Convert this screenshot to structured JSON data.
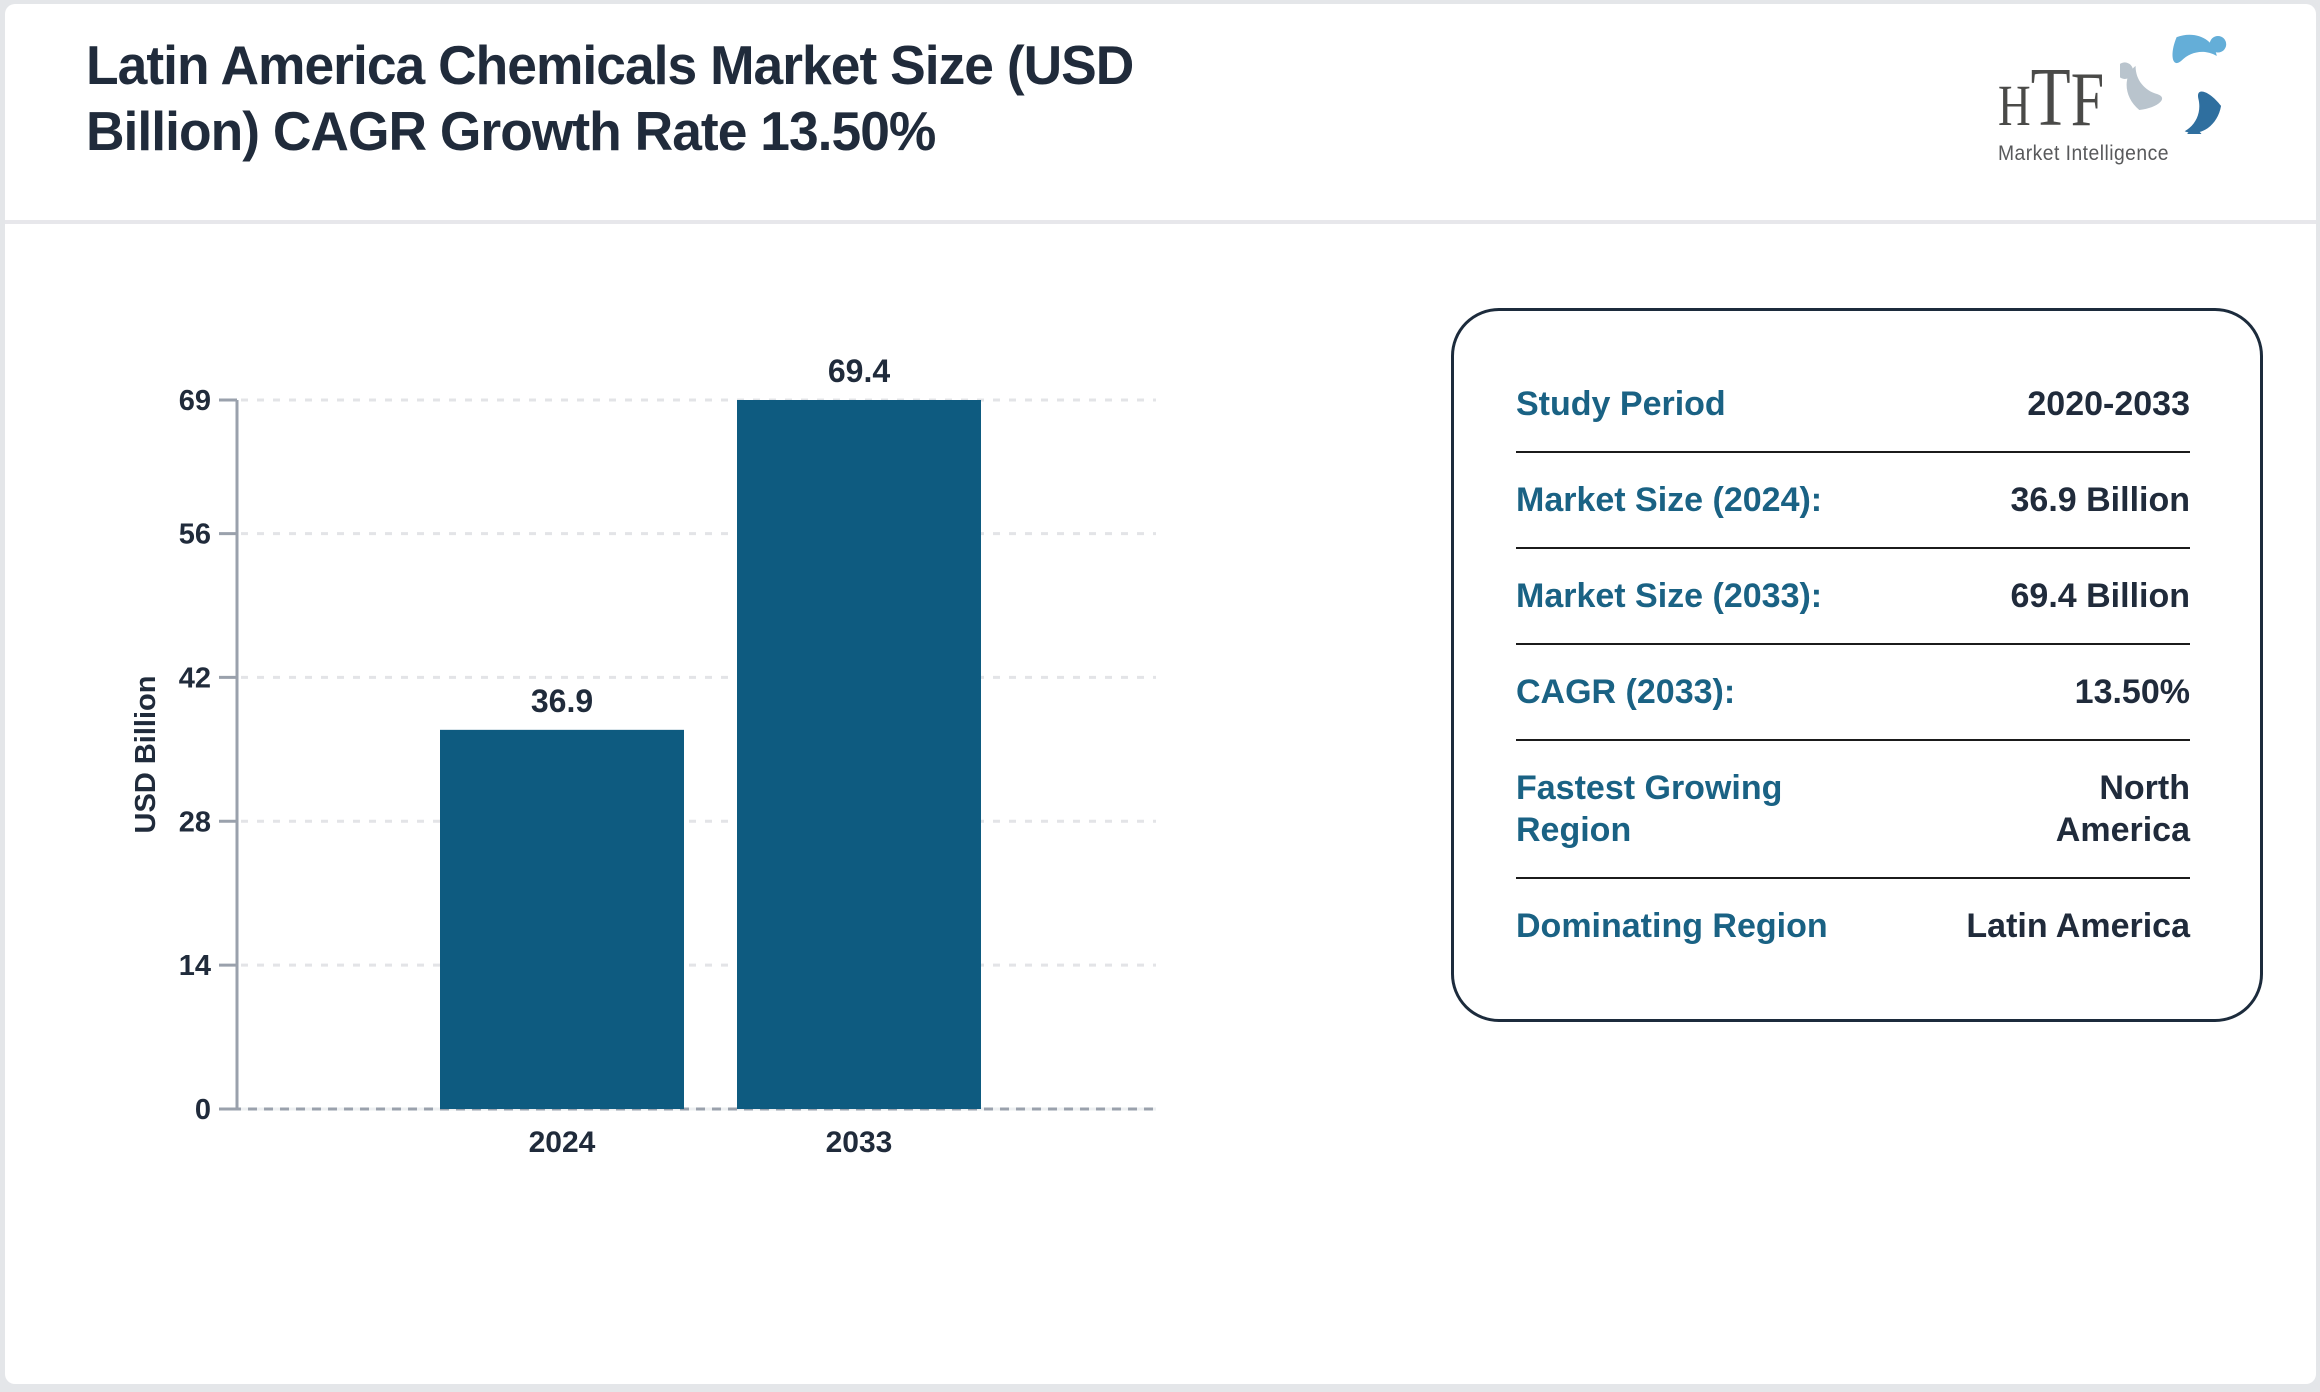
{
  "header": {
    "title_line1": "Latin America Chemicals Market Size (USD",
    "title_line2": "Billion) CAGR Growth Rate 13.50%"
  },
  "logo": {
    "brand": "HTF",
    "tagline": "Market Intelligence",
    "icon": "swirl-figures-icon",
    "colors": {
      "light_blue": "#64aed8",
      "dark_blue": "#2f6f9f",
      "gray_blue": "#b9c4cd",
      "text_gray": "#4a4a48"
    }
  },
  "chart_data": {
    "type": "bar",
    "categories": [
      "2024",
      "2033"
    ],
    "values": [
      36.9,
      69.4
    ],
    "value_labels": [
      "36.9",
      "69.4"
    ],
    "title": "",
    "xlabel": "",
    "ylabel": "USD Billion",
    "y_ticks": [
      0,
      14,
      28,
      42,
      56,
      69
    ],
    "ylim": [
      0,
      69
    ],
    "grid": "horizontal-dashed",
    "legend": "none",
    "bar_color": "#0e5b80",
    "text_color": "#202b3b",
    "axis_color": "#9aa1ac",
    "grid_color": "#e3e4e7"
  },
  "info_card": {
    "rows": [
      {
        "label": "Study Period",
        "value": "2020-2033"
      },
      {
        "label": "Market Size (2024):",
        "value": "36.9 Billion"
      },
      {
        "label": "Market Size (2033):",
        "value": "69.4 Billion"
      },
      {
        "label": "CAGR (2033):",
        "value": "13.50%"
      },
      {
        "label": "Fastest Growing\nRegion",
        "value": "North\nAmerica"
      },
      {
        "label": "Dominating Region",
        "value": "Latin America"
      }
    ],
    "label_color": "#1a6284",
    "value_color": "#202b3b",
    "border_color": "#1c2b3c"
  }
}
